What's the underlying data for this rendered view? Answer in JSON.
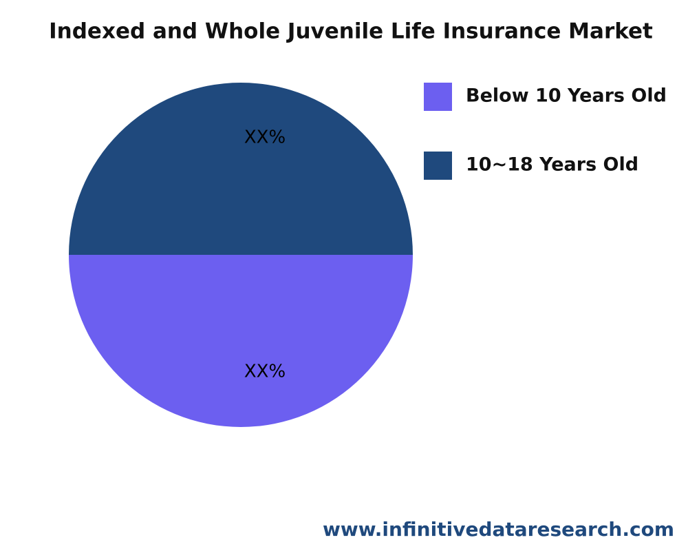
{
  "chart_data": {
    "type": "pie",
    "title": "Indexed and Whole Juvenile Life Insurance Market",
    "categories": [
      "Below 10 Years Old",
      "10~18 Years Old"
    ],
    "values": [
      50,
      50
    ],
    "value_labels": [
      "XX%",
      "XX%"
    ],
    "colors": [
      "#6c5ff0",
      "#1f497d"
    ],
    "legend": "upper right",
    "source": "www.infinitivedataresearch.com"
  }
}
